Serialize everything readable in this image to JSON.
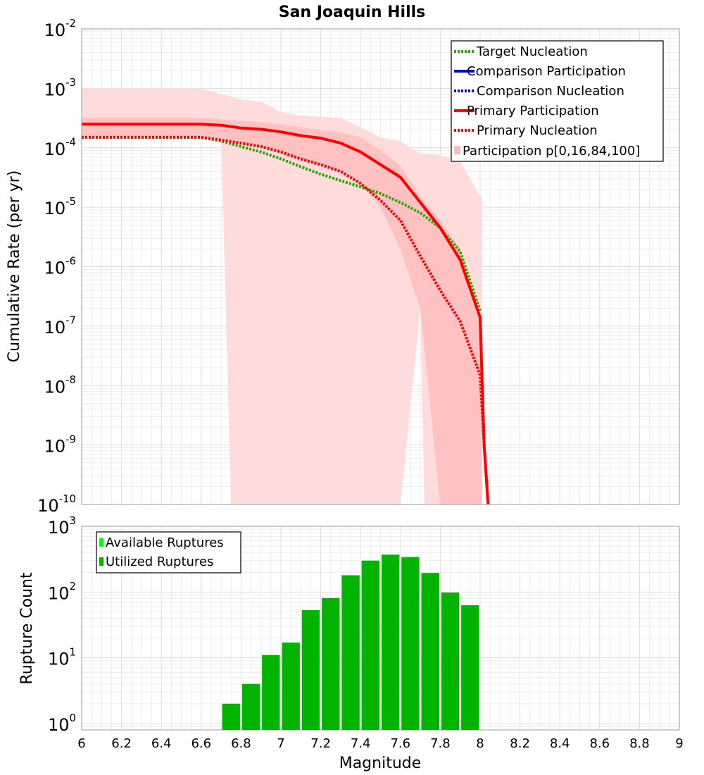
{
  "chart_data": [
    {
      "type": "line",
      "title": "San Joaquin Hills",
      "ylabel": "Cumulative Rate (per yr)",
      "xlim": [
        6,
        9
      ],
      "ylim": [
        1e-10,
        0.01
      ],
      "yscale": "log",
      "grid": true,
      "legend_position": "top-right",
      "y_tick_labels": [
        {
          "base": "10",
          "exp": "-2"
        },
        {
          "base": "10",
          "exp": "-3"
        },
        {
          "base": "10",
          "exp": "-4"
        },
        {
          "base": "10",
          "exp": "-5"
        },
        {
          "base": "10",
          "exp": "-6"
        },
        {
          "base": "10",
          "exp": "-7"
        },
        {
          "base": "10",
          "exp": "-8"
        },
        {
          "base": "10",
          "exp": "-9"
        },
        {
          "base": "10",
          "exp": "-10"
        }
      ],
      "bands": {
        "name": "Participation p[0,16,84,100]",
        "color_outer": "#ffdcdc",
        "color_inner": "#ffbcbc",
        "x": [
          6.0,
          6.6,
          6.7,
          6.8,
          6.9,
          7.0,
          7.1,
          7.2,
          7.3,
          7.4,
          7.5,
          7.6,
          7.7,
          7.8,
          7.9,
          8.0,
          8.01
        ],
        "p0": [
          1e-10,
          1e-10,
          1e-10,
          1e-10,
          1e-10,
          1e-10,
          1e-10,
          1e-10,
          1e-10,
          1e-10,
          1e-10,
          1e-10,
          1e-10,
          1e-10,
          1e-10,
          1e-10,
          1e-10
        ],
        "p100": [
          0.001,
          0.001,
          0.0008,
          0.00065,
          0.0006,
          0.0004,
          0.00035,
          0.00033,
          0.00032,
          0.00022,
          0.00015,
          0.00013,
          8e-05,
          7.5e-05,
          6e-05,
          1.5e-05,
          1.5e-05
        ],
        "p0_x": [
          6.0,
          6.7,
          6.75,
          6.78,
          7.6,
          7.7,
          7.72,
          7.97,
          8.01
        ],
        "p0_y": [
          0.00015,
          0.00015,
          1e-10,
          1e-10,
          1e-10,
          2e-07,
          1e-10,
          1e-10,
          1e-10
        ],
        "p16": [
          0.00015,
          0.00015,
          0.00014,
          0.00012,
          0.0001,
          8e-05,
          6e-05,
          5e-05,
          4e-05,
          2.5e-05,
          1e-05,
          2e-06,
          2e-07,
          1e-10,
          1e-10,
          1e-10,
          1e-10
        ],
        "p84": [
          0.00032,
          0.00032,
          0.0003,
          0.00028,
          0.00027,
          0.00025,
          0.00022,
          0.0002,
          0.00018,
          0.00015,
          9e-05,
          5e-05,
          1.5e-05,
          6e-06,
          2e-06,
          1.5e-07,
          1e-10
        ]
      },
      "series": [
        {
          "name": "Target Nucleation",
          "color": "#22aa00",
          "style": "dotted",
          "x": [
            6.0,
            6.6,
            6.7,
            6.8,
            6.9,
            7.0,
            7.1,
            7.2,
            7.3,
            7.4,
            7.5,
            7.6,
            7.7,
            7.8,
            7.9,
            8.0
          ],
          "y": [
            0.00015,
            0.00015,
            0.00013,
            0.000105,
            8.5e-05,
            6.5e-05,
            4.8e-05,
            3.6e-05,
            2.8e-05,
            2.2e-05,
            1.7e-05,
            1.2e-05,
            8e-06,
            4.5e-06,
            1.8e-06,
            1.8e-07
          ]
        },
        {
          "name": "Comparison Participation",
          "color": "#0000ff",
          "style": "solid",
          "x": [],
          "y": []
        },
        {
          "name": "Comparison Nucleation",
          "color": "#0000ff",
          "style": "dotted",
          "x": [],
          "y": []
        },
        {
          "name": "Primary Participation",
          "color": "#ff0000",
          "style": "solid",
          "x": [
            6.0,
            6.6,
            6.7,
            6.8,
            6.9,
            7.0,
            7.1,
            7.2,
            7.3,
            7.4,
            7.5,
            7.6,
            7.7,
            7.8,
            7.9,
            8.0,
            8.02,
            8.04
          ],
          "y": [
            0.00025,
            0.00025,
            0.00024,
            0.000215,
            0.000205,
            0.000185,
            0.00016,
            0.000145,
            0.00012,
            8.5e-05,
            5.2e-05,
            3.2e-05,
            1.2e-05,
            4.5e-06,
            1.3e-06,
            1.4e-07,
            1e-09,
            1e-10
          ]
        },
        {
          "name": "Primary Nucleation",
          "color": "#ff0000",
          "style": "dotted",
          "x": [
            6.0,
            6.6,
            6.7,
            6.8,
            6.9,
            7.0,
            7.1,
            7.2,
            7.3,
            7.4,
            7.5,
            7.6,
            7.7,
            7.8,
            7.9,
            8.0,
            8.02,
            8.04
          ],
          "y": [
            0.00015,
            0.00015,
            0.000135,
            0.00012,
            0.000105,
            8.5e-05,
            6.5e-05,
            5.2e-05,
            4e-05,
            2.5e-05,
            1.3e-05,
            6e-06,
            1.5e-06,
            4e-07,
            1.2e-07,
            1.5e-08,
            1e-09,
            1e-10
          ]
        }
      ]
    },
    {
      "type": "bar",
      "xlabel": "Magnitude",
      "ylabel": "Rupture Count",
      "xlim": [
        6,
        9
      ],
      "ylim": [
        0.8,
        1000
      ],
      "yscale": "log",
      "grid": true,
      "legend_position": "top-left",
      "x_tick_labels": [
        "6",
        "6.2",
        "6.4",
        "6.6",
        "6.8",
        "7",
        "7.2",
        "7.4",
        "7.6",
        "7.8",
        "8",
        "8.2",
        "8.4",
        "8.6",
        "8.8",
        "9"
      ],
      "y_tick_labels": [
        {
          "base": "10",
          "exp": "3"
        },
        {
          "base": "10",
          "exp": "2"
        },
        {
          "base": "10",
          "exp": "1"
        },
        {
          "base": "10",
          "exp": "0"
        }
      ],
      "categories": [
        6.75,
        6.85,
        6.95,
        7.05,
        7.15,
        7.25,
        7.35,
        7.45,
        7.55,
        7.65,
        7.75,
        7.85,
        7.95
      ],
      "series": [
        {
          "name": "Available Ruptures",
          "color": "#00ff00",
          "values": [
            2,
            4,
            11,
            17,
            53,
            81,
            180,
            300,
            370,
            340,
            195,
            98,
            63
          ]
        },
        {
          "name": "Utilized Ruptures",
          "color": "#00b400",
          "values": [
            2,
            4,
            11,
            17,
            53,
            81,
            180,
            300,
            370,
            340,
            195,
            98,
            63
          ]
        }
      ]
    }
  ]
}
